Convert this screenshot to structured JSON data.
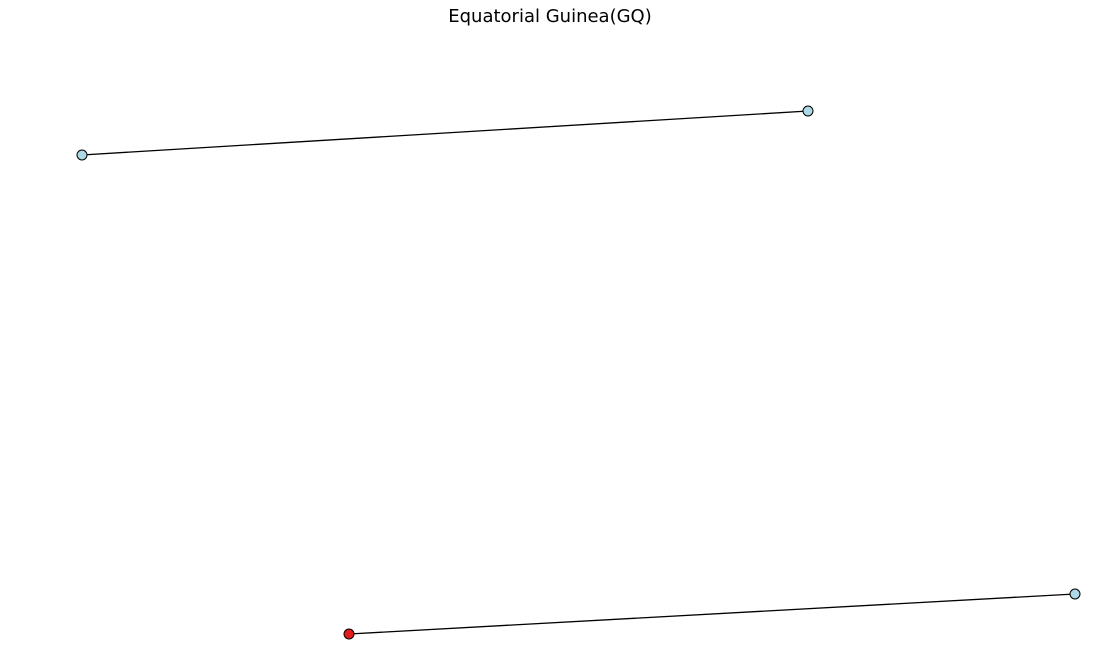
{
  "title": "Equatorial Guinea(GQ)",
  "colors": {
    "background": "#ffffff",
    "edge": "#000000",
    "node_default": "#add8e6",
    "node_highlight": "#e31a1c",
    "node_outline": "#000000"
  },
  "nodes": [
    {
      "id": "node-1",
      "color": "node_default"
    },
    {
      "id": "node-2",
      "color": "node_default"
    },
    {
      "id": "node-3",
      "color": "node_highlight"
    },
    {
      "id": "node-4",
      "color": "node_default"
    }
  ],
  "edges": [
    {
      "from": "node-1",
      "to": "node-2"
    },
    {
      "from": "node-3",
      "to": "node-4"
    }
  ]
}
